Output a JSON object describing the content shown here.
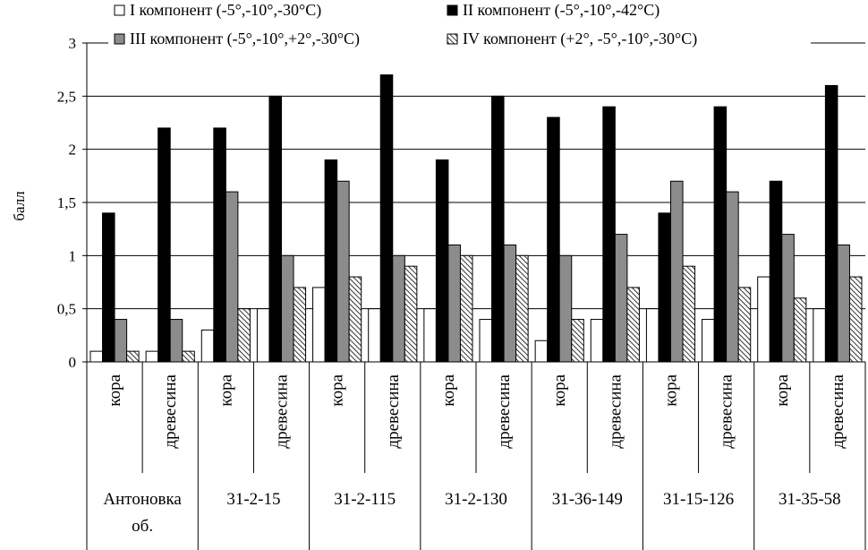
{
  "chart_data": {
    "type": "bar",
    "ylabel": "балл",
    "ylim": [
      0,
      3
    ],
    "yticks": [
      "0",
      "0,5",
      "1",
      "1,5",
      "2",
      "2,5",
      "3"
    ],
    "grid": true,
    "legend_position": "top",
    "groups": [
      {
        "label": "Антоновка об.",
        "label_lines": [
          "Антоновка",
          "об."
        ]
      },
      {
        "label": "31-2-15",
        "label_lines": [
          "31-2-15"
        ]
      },
      {
        "label": "31-2-115",
        "label_lines": [
          "31-2-115"
        ]
      },
      {
        "label": "31-2-130",
        "label_lines": [
          "31-2-130"
        ]
      },
      {
        "label": "31-36-149",
        "label_lines": [
          "31-36-149"
        ]
      },
      {
        "label": "31-15-126",
        "label_lines": [
          "31-15-126"
        ]
      },
      {
        "label": "31-35-58",
        "label_lines": [
          "31-35-58"
        ]
      }
    ],
    "categories": [
      "кора",
      "древесина",
      "кора",
      "древесина",
      "кора",
      "древесина",
      "кора",
      "древесина",
      "кора",
      "древесина",
      "кора",
      "древесина",
      "кора",
      "древесина"
    ],
    "series": [
      {
        "name": "I компонент (-5°,-10°,-30°С)",
        "fill": "#ffffff",
        "pattern": "none",
        "values": [
          0.1,
          0.1,
          0.3,
          0.5,
          0.7,
          0.5,
          0.5,
          0.4,
          0.2,
          0.4,
          0.5,
          0.4,
          0.8,
          0.5
        ]
      },
      {
        "name": "II компонент (-5°,-10°,-42°С)",
        "fill": "#000000",
        "pattern": "none",
        "values": [
          1.4,
          2.2,
          2.2,
          2.5,
          1.9,
          2.7,
          1.9,
          2.5,
          2.3,
          2.4,
          1.4,
          2.4,
          1.7,
          2.6
        ]
      },
      {
        "name": "III компонент (-5°,-10°,+2°,-30°С)",
        "fill": "#8c8c8c",
        "pattern": "none",
        "values": [
          0.4,
          0.4,
          1.6,
          1.0,
          1.7,
          1.0,
          1.1,
          1.1,
          1.0,
          1.2,
          1.7,
          1.6,
          1.2,
          1.1
        ]
      },
      {
        "name": "IV компонент (+2°, -5°,-10°,-30°С)",
        "fill": "#ffffff",
        "pattern": "hatch",
        "values": [
          0.1,
          0.1,
          0.5,
          0.7,
          0.8,
          0.9,
          1.0,
          1.0,
          0.4,
          0.7,
          0.9,
          0.7,
          0.6,
          0.8
        ]
      }
    ],
    "colors": {
      "axis": "#000000",
      "grid": "#000000",
      "hatch": "#000000"
    }
  }
}
